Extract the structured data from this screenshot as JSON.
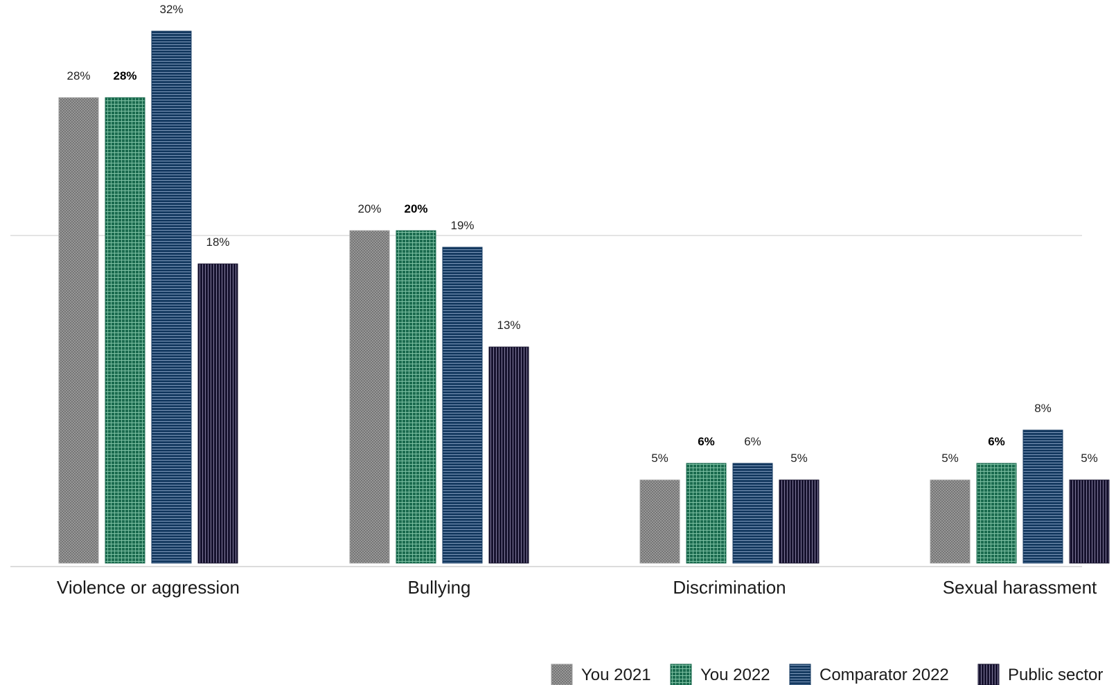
{
  "chart_data": {
    "type": "bar",
    "categories": [
      "Violence or aggression",
      "Bullying",
      "Discrimination",
      "Sexual harassment"
    ],
    "series": [
      {
        "name": "You 2021",
        "values": [
          28,
          20,
          5,
          5
        ],
        "labels": [
          "28%",
          "20%",
          "5%",
          "5%"
        ],
        "bold": false,
        "color": "#9e9e9e",
        "pattern": "crosshatch"
      },
      {
        "name": "You 2022",
        "values": [
          28,
          20,
          6,
          6
        ],
        "labels": [
          "28%",
          "20%",
          "6%",
          "6%"
        ],
        "bold": true,
        "color": "#1b6b4f",
        "pattern": "grid"
      },
      {
        "name": "Comparator 2022",
        "values": [
          32,
          19,
          6,
          8
        ],
        "labels": [
          "32%",
          "19%",
          "6%",
          "8%"
        ],
        "bold": false,
        "color": "#153a61",
        "pattern": "horizontal-lines"
      },
      {
        "name": "Public sector",
        "values": [
          18,
          13,
          5,
          5
        ],
        "labels": [
          "18%",
          "13%",
          "5%",
          "5%"
        ],
        "bold": false,
        "color": "#16122e",
        "pattern": "vertical-lines"
      }
    ],
    "ylim": [
      0,
      32
    ],
    "grid": true,
    "legend": "bottom-right",
    "title": "",
    "xlabel": "",
    "ylabel": ""
  }
}
